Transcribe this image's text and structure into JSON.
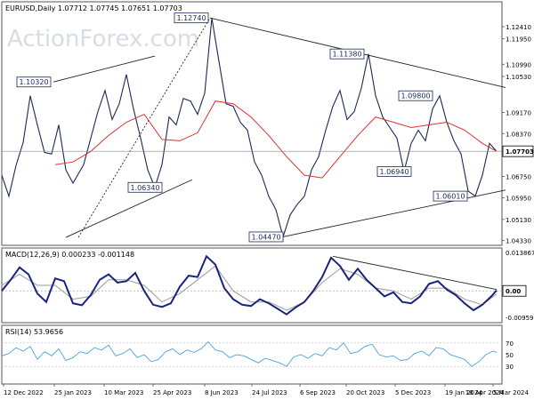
{
  "chart_data": {
    "type": "line",
    "main": {
      "header": "EURUSD,Daily  1.07712 1.07745 1.07651 1.07703",
      "watermark": "ActionForex.com",
      "ylim": [
        1.0415,
        1.1335
      ],
      "y_ticks": [
        "1.12410",
        "1.11950",
        "1.10990",
        "1.10530",
        "1.09170",
        "1.08370",
        "1.07703",
        "1.06750",
        "1.05950",
        "1.05130",
        "1.04330"
      ],
      "y_tick_values": [
        1.1241,
        1.1195,
        1.1099,
        1.1053,
        1.0917,
        1.0837,
        1.07703,
        1.0675,
        1.0595,
        1.0513,
        1.0433
      ],
      "current_price": "1.07703",
      "current_price_value": 1.07703,
      "price_series": {
        "x": [
          0,
          8,
          16,
          24,
          32,
          40,
          48,
          56,
          64,
          72,
          80,
          86,
          92,
          100,
          108,
          116,
          124,
          132,
          140,
          148,
          156,
          164,
          172,
          180,
          188,
          196,
          204,
          212,
          220,
          228,
          236,
          244,
          252,
          260,
          268,
          276,
          284,
          292,
          300,
          308,
          316,
          324,
          332,
          340,
          348,
          356,
          364,
          372,
          380,
          388,
          396,
          404,
          412,
          420,
          428,
          436,
          444,
          452,
          460,
          468,
          476,
          484,
          492,
          500,
          508,
          516,
          524,
          532,
          540,
          548,
          556
        ],
        "values": [
          1.068,
          1.06,
          1.0717,
          1.0803,
          1.098,
          1.087,
          1.0766,
          1.076,
          1.087,
          1.07,
          1.065,
          1.0685,
          1.072,
          1.082,
          1.092,
          1.1,
          1.089,
          1.095,
          1.106,
          1.093,
          1.082,
          1.07,
          1.0634,
          1.072,
          1.09,
          1.087,
          1.097,
          1.096,
          1.091,
          1.099,
          1.1274,
          1.111,
          1.095,
          1.094,
          1.088,
          1.085,
          1.073,
          1.068,
          1.06,
          1.055,
          1.0447,
          1.053,
          1.057,
          1.06,
          1.07,
          1.075,
          1.085,
          1.094,
          1.1,
          1.089,
          1.092,
          1.1009,
          1.1138,
          1.098,
          1.09,
          1.086,
          1.082,
          1.0694,
          1.08,
          1.085,
          1.081,
          1.093,
          1.098,
          1.088,
          1.081,
          1.076,
          1.062,
          1.0601,
          1.068,
          1.08,
          1.077
        ]
      },
      "ma_series": {
        "x": [
          60,
          80,
          100,
          120,
          140,
          160,
          180,
          200,
          220,
          240,
          260,
          280,
          300,
          320,
          340,
          360,
          380,
          400,
          420,
          440,
          460,
          480,
          500,
          520,
          540,
          556
        ],
        "values": [
          1.072,
          1.073,
          1.077,
          1.083,
          1.088,
          1.091,
          1.0815,
          1.081,
          1.084,
          1.096,
          1.095,
          1.09,
          1.083,
          1.075,
          1.068,
          1.067,
          1.075,
          1.083,
          1.09,
          1.088,
          1.086,
          1.087,
          1.088,
          1.085,
          1.08,
          1.077
        ]
      },
      "labels": [
        {
          "text": "1.10320",
          "x": 55,
          "y": 1.1032,
          "side": "left"
        },
        {
          "text": "1.12740",
          "x": 232,
          "y": 1.1274,
          "side": "left"
        },
        {
          "text": "1.11380",
          "x": 407,
          "y": 1.1138,
          "side": "left"
        },
        {
          "text": "1.09800",
          "x": 484,
          "y": 1.098,
          "side": "left"
        },
        {
          "text": "1.06340",
          "x": 180,
          "y": 1.0634,
          "side": "left"
        },
        {
          "text": "1.06940",
          "x": 460,
          "y": 1.0694,
          "side": "left"
        },
        {
          "text": "1.06010",
          "x": 523,
          "y": 1.0601,
          "side": "left"
        },
        {
          "text": "1.04470",
          "x": 316,
          "y": 1.0447,
          "side": "left"
        }
      ],
      "trendlines": [
        {
          "x1": 58,
          "y1": 1.1032,
          "x2": 172,
          "y2": 1.113,
          "style": "solid"
        },
        {
          "x1": 72,
          "y1": 1.0445,
          "x2": 214,
          "y2": 1.0663,
          "style": "solid"
        },
        {
          "x1": 86,
          "y1": 1.0445,
          "x2": 234,
          "y2": 1.1274,
          "style": "dashed"
        },
        {
          "x1": 234,
          "y1": 1.1274,
          "x2": 566,
          "y2": 1.1011,
          "style": "solid"
        },
        {
          "x1": 316,
          "y1": 1.0447,
          "x2": 566,
          "y2": 1.0624,
          "style": "solid"
        }
      ]
    },
    "macd": {
      "title": "MACD(12,26,9) 0.000233 -0.001148",
      "ylim": [
        -0.0115,
        0.0155
      ],
      "y_ticks": [
        "0.013867",
        "0.00",
        "-0.009599"
      ],
      "y_tick_values": [
        0.013867,
        0.0,
        -0.009599
      ],
      "zero_value": 0.0,
      "current_label": "0.00",
      "macd_series": {
        "x": [
          0,
          10,
          20,
          30,
          40,
          50,
          60,
          70,
          80,
          90,
          100,
          110,
          120,
          130,
          140,
          150,
          160,
          170,
          180,
          190,
          200,
          210,
          220,
          230,
          240,
          250,
          260,
          270,
          280,
          290,
          300,
          310,
          320,
          330,
          340,
          350,
          360,
          370,
          380,
          390,
          400,
          410,
          420,
          430,
          440,
          450,
          460,
          470,
          480,
          490,
          500,
          510,
          520,
          530,
          540,
          550,
          556
        ],
        "values": [
          0.0,
          0.004,
          0.0085,
          0.006,
          -0.001,
          -0.004,
          0.0045,
          0.0035,
          -0.0045,
          -0.0052,
          -0.0015,
          0.004,
          0.006,
          0.003,
          0.0035,
          0.0065,
          0.0,
          -0.005,
          -0.0058,
          -0.0045,
          0.0015,
          0.0055,
          0.005,
          0.0125,
          0.0095,
          0.001,
          -0.003,
          -0.005,
          -0.0055,
          -0.003,
          -0.0045,
          -0.0065,
          -0.0085,
          -0.006,
          -0.004,
          0.0,
          0.005,
          0.012,
          0.009,
          0.004,
          0.008,
          0.004,
          0.001,
          -0.002,
          -0.0005,
          -0.004,
          -0.0045,
          -0.002,
          0.0025,
          0.0035,
          0.0005,
          -0.0015,
          -0.0045,
          -0.007,
          -0.005,
          -0.002,
          0.0002
        ]
      },
      "signal_series": {
        "x": [
          0,
          20,
          40,
          60,
          80,
          100,
          120,
          140,
          160,
          180,
          200,
          220,
          240,
          260,
          280,
          300,
          320,
          340,
          360,
          380,
          400,
          420,
          440,
          460,
          480,
          500,
          520,
          540,
          556
        ],
        "values": [
          0.002,
          0.006,
          0.002,
          0.002,
          -0.003,
          -0.002,
          0.004,
          0.004,
          0.002,
          -0.004,
          -0.001,
          0.004,
          0.009,
          0.0,
          -0.004,
          -0.004,
          -0.007,
          -0.004,
          0.003,
          0.008,
          0.006,
          0.001,
          0.0,
          -0.003,
          0.001,
          0.001,
          -0.003,
          -0.005,
          -0.0011
        ]
      },
      "trendline": {
        "x1": 372,
        "y1": 0.0125,
        "x2": 556,
        "y2": 0.0005
      }
    },
    "rsi": {
      "title": "RSI(14) 53.9656",
      "ylim": [
        0,
        100
      ],
      "y_ticks": [
        "70",
        "50",
        "30"
      ],
      "y_tick_values": [
        70,
        50,
        30
      ],
      "series": {
        "x": [
          0,
          8,
          16,
          24,
          32,
          40,
          48,
          56,
          64,
          72,
          80,
          88,
          96,
          104,
          112,
          120,
          128,
          136,
          144,
          152,
          160,
          168,
          176,
          184,
          192,
          200,
          208,
          216,
          224,
          232,
          240,
          248,
          256,
          264,
          272,
          280,
          288,
          296,
          304,
          312,
          320,
          328,
          336,
          344,
          352,
          360,
          368,
          376,
          384,
          392,
          400,
          408,
          416,
          424,
          432,
          440,
          448,
          456,
          464,
          472,
          480,
          488,
          496,
          504,
          512,
          520,
          528,
          536,
          544,
          552,
          556
        ],
        "values": [
          48,
          52,
          62,
          56,
          64,
          42,
          55,
          48,
          60,
          40,
          45,
          55,
          52,
          62,
          58,
          66,
          48,
          52,
          60,
          45,
          50,
          38,
          42,
          55,
          60,
          50,
          58,
          54,
          60,
          72,
          58,
          55,
          45,
          50,
          48,
          42,
          36,
          44,
          40,
          36,
          30,
          46,
          50,
          44,
          52,
          48,
          62,
          58,
          70,
          52,
          55,
          64,
          68,
          50,
          46,
          48,
          40,
          42,
          52,
          56,
          48,
          62,
          60,
          50,
          46,
          42,
          30,
          38,
          50,
          56,
          54
        ]
      }
    },
    "x_axis": {
      "labels": [
        "12 Dec 2022",
        "25 Jan 2023",
        "10 Mar 2023",
        "25 Apr 2023",
        "8 Jun 2023",
        "24 Jul 2023",
        "6 Sep 2023",
        "20 Oct 2023",
        "5 Dec 2023",
        "19 Jan 2024",
        "5 Mar 2024",
        "18 Apr 2024"
      ],
      "label_positions": [
        4,
        61,
        117,
        172,
        230,
        283,
        337,
        389,
        444,
        500,
        554,
        606
      ]
    },
    "colors": {
      "price": "#1b2a55",
      "ma": "#e03030",
      "macd": "#1a237e",
      "signal": "#9a9a9a",
      "rsi": "#4aa3e0",
      "trend": "#222222",
      "watermark": "#d7dde4"
    }
  }
}
